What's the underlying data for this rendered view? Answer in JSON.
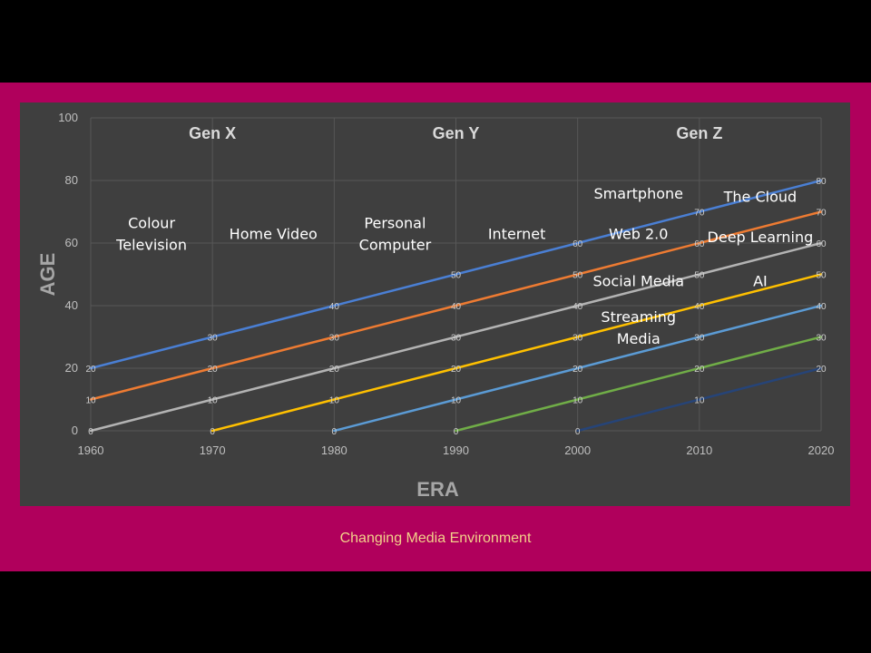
{
  "caption": "Changing Media Environment",
  "colors": {
    "frame": "#b0005c",
    "panel": "#3f3f3f",
    "caption": "#f2d08a",
    "series": [
      "#4a7fd4",
      "#ee7b32",
      "#b3b3b3",
      "#ffc000",
      "#5b9bd5",
      "#70ad47",
      "#264478"
    ]
  },
  "chart_data": {
    "type": "line",
    "title": "",
    "xlabel": "ERA",
    "ylabel": "AGE",
    "xlim": [
      1960,
      2020
    ],
    "ylim": [
      0,
      100
    ],
    "x_ticks": [
      1960,
      1970,
      1980,
      1990,
      2000,
      2010,
      2020
    ],
    "y_ticks": [
      0,
      20,
      40,
      60,
      80,
      100
    ],
    "grid": true,
    "legend": "none",
    "series": [
      {
        "x": [
          1960,
          1970,
          1980,
          1990,
          2000,
          2010,
          2020
        ],
        "y": [
          20,
          30,
          40,
          50,
          60,
          70,
          80
        ],
        "labels": [
          "20",
          "30",
          "40",
          "50",
          "60",
          "70",
          "80"
        ]
      },
      {
        "x": [
          1960,
          1970,
          1980,
          1990,
          2000,
          2010,
          2020
        ],
        "y": [
          10,
          20,
          30,
          40,
          50,
          60,
          70
        ],
        "labels": [
          "10",
          "20",
          "30",
          "40",
          "50",
          "60",
          "70"
        ]
      },
      {
        "x": [
          1960,
          1970,
          1980,
          1990,
          2000,
          2010,
          2020
        ],
        "y": [
          0,
          10,
          20,
          30,
          40,
          50,
          60
        ],
        "labels": [
          "0",
          "10",
          "20",
          "30",
          "40",
          "50",
          "60"
        ]
      },
      {
        "x": [
          1970,
          1980,
          1990,
          2000,
          2010,
          2020
        ],
        "y": [
          0,
          10,
          20,
          30,
          40,
          50
        ],
        "labels": [
          "0",
          "10",
          "20",
          "30",
          "40",
          "50"
        ]
      },
      {
        "x": [
          1980,
          1990,
          2000,
          2010,
          2020
        ],
        "y": [
          0,
          10,
          20,
          30,
          40
        ],
        "labels": [
          "0",
          "10",
          "20",
          "30",
          "40"
        ]
      },
      {
        "x": [
          1990,
          2000,
          2010,
          2020
        ],
        "y": [
          0,
          10,
          20,
          30
        ],
        "labels": [
          "0",
          "10",
          "20",
          "30"
        ]
      },
      {
        "x": [
          2000,
          2010,
          2020
        ],
        "y": [
          0,
          10,
          20
        ],
        "labels": [
          "0",
          "10",
          "20"
        ]
      }
    ],
    "generations": [
      {
        "label": "Gen X",
        "x_range": [
          1960,
          1980
        ]
      },
      {
        "label": "Gen Y",
        "x_range": [
          1980,
          2000
        ]
      },
      {
        "label": "Gen Z",
        "x_range": [
          2000,
          2020
        ]
      }
    ],
    "annotations": [
      {
        "lines": [
          "Colour",
          "Television"
        ],
        "x": 1965,
        "y": 63
      },
      {
        "lines": [
          "Home Video"
        ],
        "x": 1975,
        "y": 63
      },
      {
        "lines": [
          "Personal",
          "Computer"
        ],
        "x": 1985,
        "y": 63
      },
      {
        "lines": [
          "Internet"
        ],
        "x": 1995,
        "y": 63
      },
      {
        "lines": [
          "Smartphone"
        ],
        "x": 2005,
        "y": 76
      },
      {
        "lines": [
          "The Cloud"
        ],
        "x": 2015,
        "y": 75
      },
      {
        "lines": [
          "Web 2.0"
        ],
        "x": 2005,
        "y": 63
      },
      {
        "lines": [
          "Deep Learning"
        ],
        "x": 2015,
        "y": 62
      },
      {
        "lines": [
          "Social Media"
        ],
        "x": 2005,
        "y": 48
      },
      {
        "lines": [
          "AI"
        ],
        "x": 2015,
        "y": 48
      },
      {
        "lines": [
          "Streaming",
          "Media"
        ],
        "x": 2005,
        "y": 33
      }
    ]
  }
}
